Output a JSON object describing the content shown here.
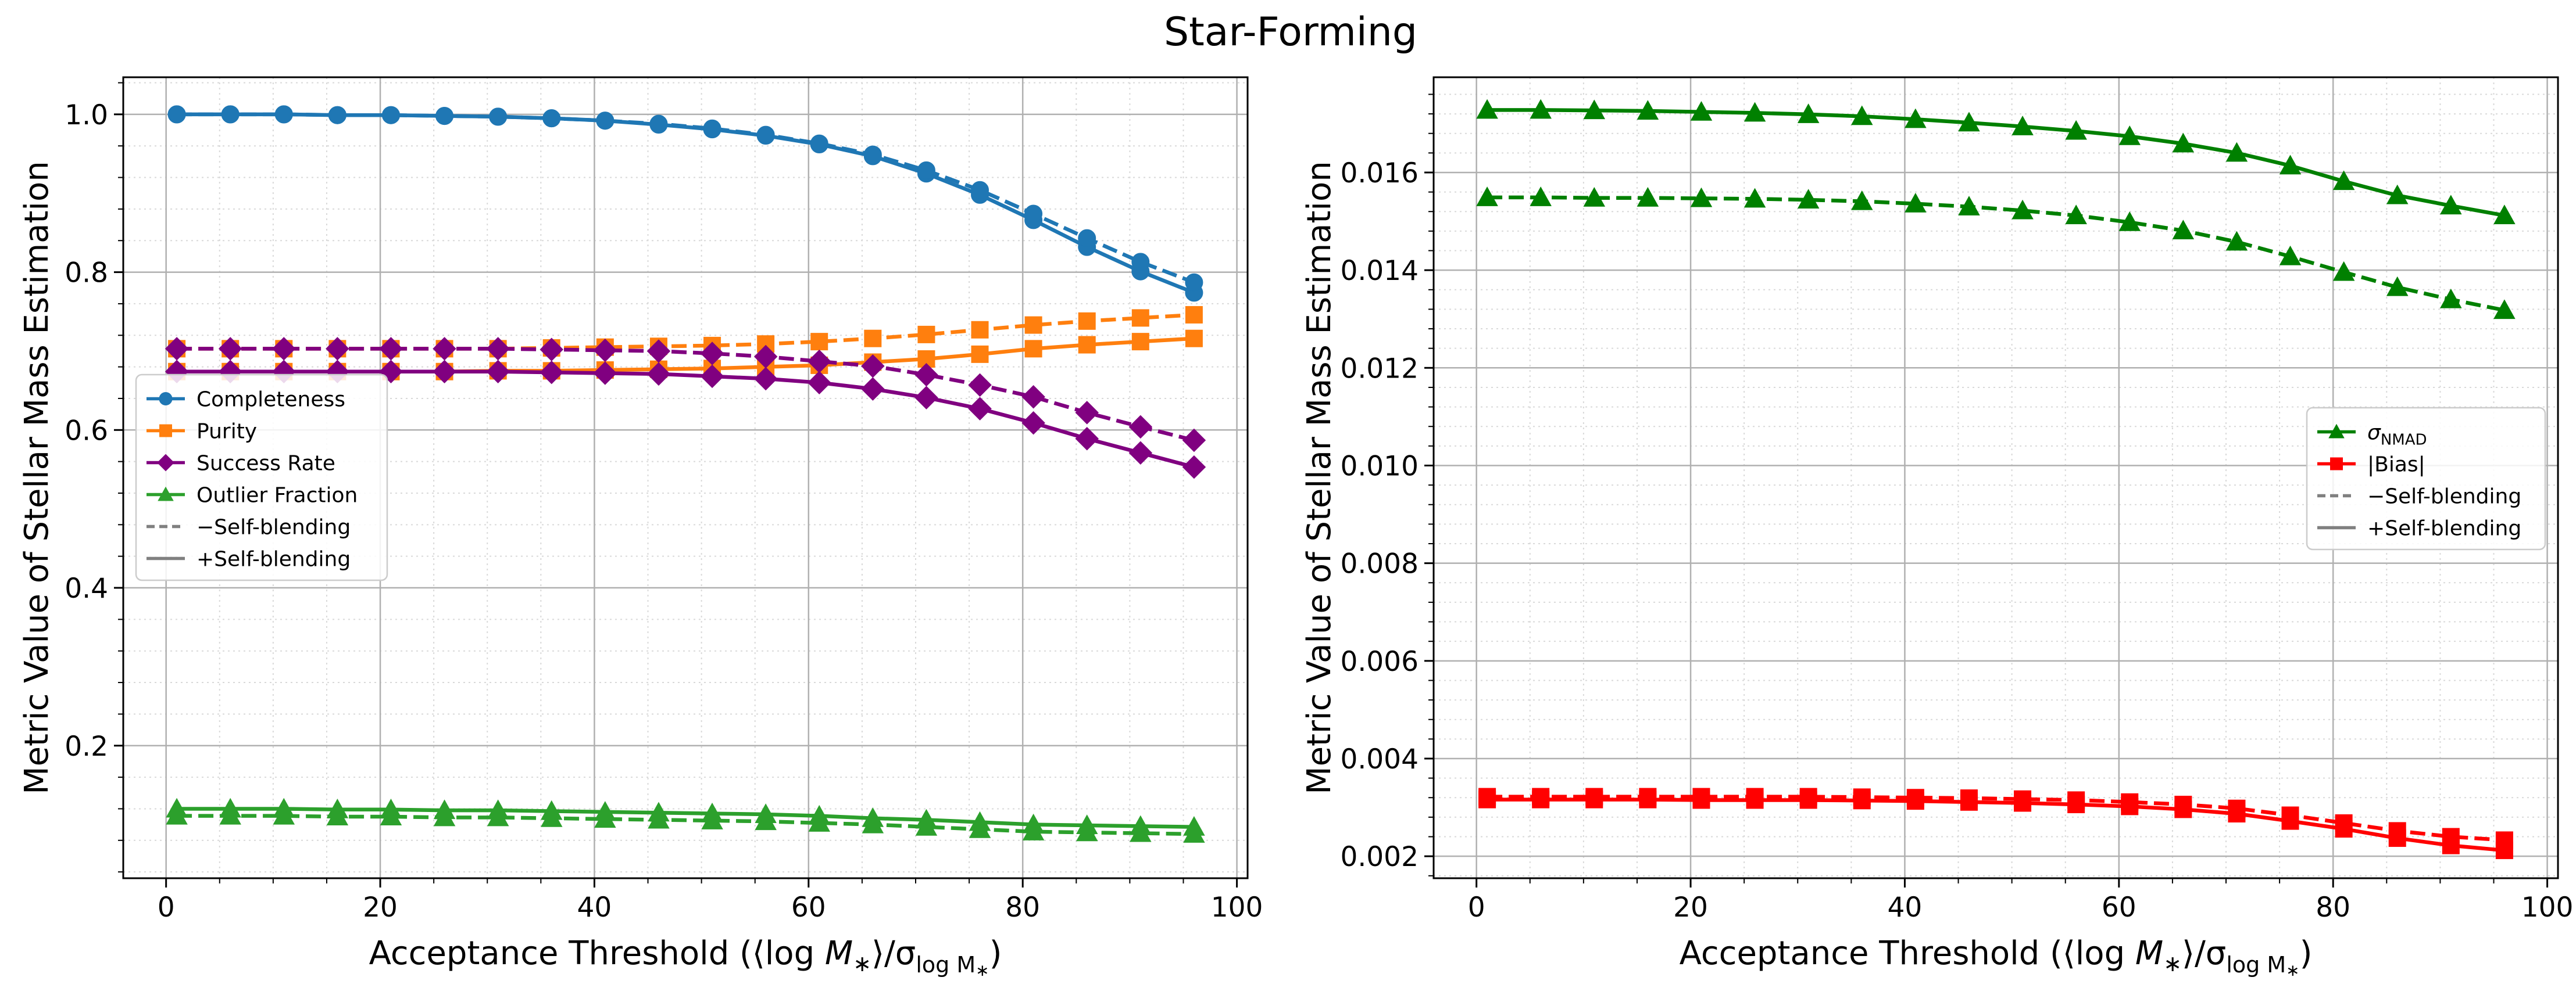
{
  "figure_title": "Star-Forming",
  "chart_data": [
    {
      "type": "line",
      "id": "left",
      "title": "",
      "xlabel": "Acceptance Threshold (⟨log M*⟩/σ_log M*)",
      "xlabel_parts": {
        "pre": "Acceptance Threshold (⟨log ",
        "M": "M",
        "star": "∗",
        "mid": "⟩/σ",
        "sub": "log M",
        "substar": "∗",
        "post": ")"
      },
      "ylabel": "Metric Value of Stellar Mass Estimation",
      "xlim": [
        -4,
        101
      ],
      "ylim": [
        0.032,
        1.047
      ],
      "xticks": [
        0,
        20,
        40,
        60,
        80,
        100
      ],
      "xtick_labels": [
        "0",
        "20",
        "40",
        "60",
        "80",
        "100"
      ],
      "yticks": [
        0.2,
        0.4,
        0.6,
        0.8,
        1.0
      ],
      "ytick_labels": [
        "0.2",
        "0.4",
        "0.6",
        "0.8",
        "1.0"
      ],
      "x": [
        1,
        6,
        11,
        16,
        21,
        26,
        31,
        36,
        41,
        46,
        51,
        56,
        61,
        66,
        71,
        76,
        81,
        86,
        91,
        96
      ],
      "series": [
        {
          "name": "Completeness (+Self-blending)",
          "color": "#1f77b4",
          "marker": "circle",
          "dash": false,
          "values": [
            1.0,
            1.0,
            1.0,
            0.999,
            0.999,
            0.998,
            0.997,
            0.995,
            0.992,
            0.987,
            0.981,
            0.973,
            0.962,
            0.947,
            0.925,
            0.898,
            0.866,
            0.832,
            0.801,
            0.774
          ]
        },
        {
          "name": "Completeness (−Self-blending)",
          "color": "#1f77b4",
          "marker": "circle",
          "dash": true,
          "values": [
            1.0,
            1.0,
            1.0,
            0.999,
            0.999,
            0.998,
            0.997,
            0.995,
            0.992,
            0.988,
            0.982,
            0.974,
            0.963,
            0.949,
            0.929,
            0.904,
            0.874,
            0.843,
            0.813,
            0.787
          ]
        },
        {
          "name": "Purity (+Self-blending)",
          "color": "#ff7f0e",
          "marker": "square",
          "dash": false,
          "values": [
            0.674,
            0.674,
            0.674,
            0.674,
            0.674,
            0.674,
            0.675,
            0.675,
            0.676,
            0.677,
            0.678,
            0.68,
            0.682,
            0.686,
            0.69,
            0.696,
            0.703,
            0.708,
            0.712,
            0.716
          ]
        },
        {
          "name": "Purity (−Self-blending)",
          "color": "#ff7f0e",
          "marker": "square",
          "dash": true,
          "values": [
            0.703,
            0.703,
            0.703,
            0.703,
            0.703,
            0.703,
            0.703,
            0.704,
            0.705,
            0.706,
            0.707,
            0.709,
            0.712,
            0.716,
            0.721,
            0.727,
            0.733,
            0.738,
            0.742,
            0.746
          ]
        },
        {
          "name": "Success Rate (+Self-blending)",
          "color": "#800080",
          "marker": "diamond",
          "dash": false,
          "values": [
            0.674,
            0.674,
            0.674,
            0.674,
            0.674,
            0.674,
            0.674,
            0.673,
            0.672,
            0.671,
            0.668,
            0.665,
            0.66,
            0.652,
            0.641,
            0.627,
            0.609,
            0.589,
            0.571,
            0.553
          ]
        },
        {
          "name": "Success Rate (−Self-blending)",
          "color": "#800080",
          "marker": "diamond",
          "dash": true,
          "values": [
            0.703,
            0.703,
            0.703,
            0.703,
            0.703,
            0.703,
            0.703,
            0.702,
            0.701,
            0.7,
            0.697,
            0.693,
            0.687,
            0.681,
            0.67,
            0.657,
            0.642,
            0.622,
            0.604,
            0.587
          ]
        },
        {
          "name": "Outlier Fraction (+Self-blending)",
          "color": "#2ca02c",
          "marker": "triangle",
          "dash": false,
          "values": [
            0.12,
            0.12,
            0.12,
            0.119,
            0.119,
            0.118,
            0.118,
            0.117,
            0.116,
            0.115,
            0.114,
            0.113,
            0.111,
            0.108,
            0.106,
            0.103,
            0.1,
            0.099,
            0.098,
            0.097
          ]
        },
        {
          "name": "Outlier Fraction (−Self-blending)",
          "color": "#2ca02c",
          "marker": "triangle",
          "dash": true,
          "values": [
            0.111,
            0.111,
            0.111,
            0.11,
            0.11,
            0.109,
            0.109,
            0.108,
            0.107,
            0.106,
            0.105,
            0.104,
            0.102,
            0.1,
            0.097,
            0.094,
            0.091,
            0.09,
            0.089,
            0.088
          ]
        }
      ],
      "legend": {
        "position": "center-left",
        "items": [
          {
            "label": "Completeness",
            "color": "#1f77b4",
            "marker": "circle",
            "dash": false
          },
          {
            "label": "Purity",
            "color": "#ff7f0e",
            "marker": "square",
            "dash": false
          },
          {
            "label": "Success Rate",
            "color": "#800080",
            "marker": "diamond",
            "dash": false
          },
          {
            "label": "Outlier Fraction",
            "color": "#2ca02c",
            "marker": "triangle",
            "dash": false
          },
          {
            "label": "−Self-blending",
            "color": "#808080",
            "marker": "none",
            "dash": true
          },
          {
            "label": "+Self-blending",
            "color": "#808080",
            "marker": "none",
            "dash": false
          }
        ]
      },
      "grid": true
    },
    {
      "type": "line",
      "id": "right",
      "title": "",
      "xlabel": "Acceptance Threshold (⟨log M*⟩/σ_log M*)",
      "xlabel_parts": {
        "pre": "Acceptance Threshold (⟨log ",
        "M": "M",
        "star": "∗",
        "mid": "⟩/σ",
        "sub": "log M",
        "substar": "∗",
        "post": ")"
      },
      "ylabel": "Metric Value of Stellar Mass Estimation",
      "xlim": [
        -4,
        101
      ],
      "ylim": [
        0.00155,
        0.01795
      ],
      "xticks": [
        0,
        20,
        40,
        60,
        80,
        100
      ],
      "xtick_labels": [
        "0",
        "20",
        "40",
        "60",
        "80",
        "100"
      ],
      "yticks": [
        0.002,
        0.004,
        0.006,
        0.008,
        0.01,
        0.012,
        0.014,
        0.016
      ],
      "ytick_labels": [
        "0.002",
        "0.004",
        "0.006",
        "0.008",
        "0.010",
        "0.012",
        "0.014",
        "0.016"
      ],
      "x": [
        1,
        6,
        11,
        16,
        21,
        26,
        31,
        36,
        41,
        46,
        51,
        56,
        61,
        66,
        71,
        76,
        81,
        86,
        91,
        96
      ],
      "series": [
        {
          "name": "σ_NMAD (+Self-blending)",
          "color": "#008000",
          "marker": "triangle",
          "dash": false,
          "values": [
            0.01728,
            0.01728,
            0.01727,
            0.01726,
            0.01724,
            0.01722,
            0.01719,
            0.01715,
            0.01709,
            0.01702,
            0.01694,
            0.01685,
            0.01674,
            0.01659,
            0.0164,
            0.01614,
            0.01582,
            0.01553,
            0.01532,
            0.01512
          ]
        },
        {
          "name": "σ_NMAD (−Self-blending)",
          "color": "#008000",
          "marker": "triangle",
          "dash": true,
          "values": [
            0.01549,
            0.01549,
            0.01548,
            0.01548,
            0.01547,
            0.01546,
            0.01544,
            0.01541,
            0.01536,
            0.0153,
            0.01522,
            0.01512,
            0.01498,
            0.01481,
            0.01458,
            0.01428,
            0.01396,
            0.01365,
            0.0134,
            0.01318
          ]
        },
        {
          "name": "|Bias| (+Self-blending)",
          "color": "#ff0000",
          "marker": "square",
          "dash": false,
          "values": [
            0.00316,
            0.00316,
            0.00316,
            0.00316,
            0.00315,
            0.00315,
            0.00315,
            0.00314,
            0.00313,
            0.00311,
            0.00309,
            0.00306,
            0.00302,
            0.00296,
            0.00287,
            0.00272,
            0.00256,
            0.00237,
            0.00222,
            0.00212
          ]
        },
        {
          "name": "|Bias| (−Self-blending)",
          "color": "#ff0000",
          "marker": "square",
          "dash": true,
          "values": [
            0.00322,
            0.00322,
            0.00322,
            0.00322,
            0.00322,
            0.00322,
            0.00322,
            0.00321,
            0.0032,
            0.00319,
            0.00317,
            0.00315,
            0.00311,
            0.00306,
            0.00298,
            0.00284,
            0.00268,
            0.00252,
            0.0024,
            0.00233
          ]
        }
      ],
      "legend": {
        "position": "center-right",
        "items": [
          {
            "label": "σNMAD",
            "label_main": "σ",
            "label_sub": "NMAD",
            "color": "#008000",
            "marker": "triangle",
            "dash": false
          },
          {
            "label": "|Bias|",
            "color": "#ff0000",
            "marker": "square",
            "dash": false
          },
          {
            "label": "−Self-blending",
            "color": "#808080",
            "marker": "none",
            "dash": true
          },
          {
            "label": "+Self-blending",
            "color": "#808080",
            "marker": "none",
            "dash": false
          }
        ]
      },
      "grid": true
    }
  ]
}
